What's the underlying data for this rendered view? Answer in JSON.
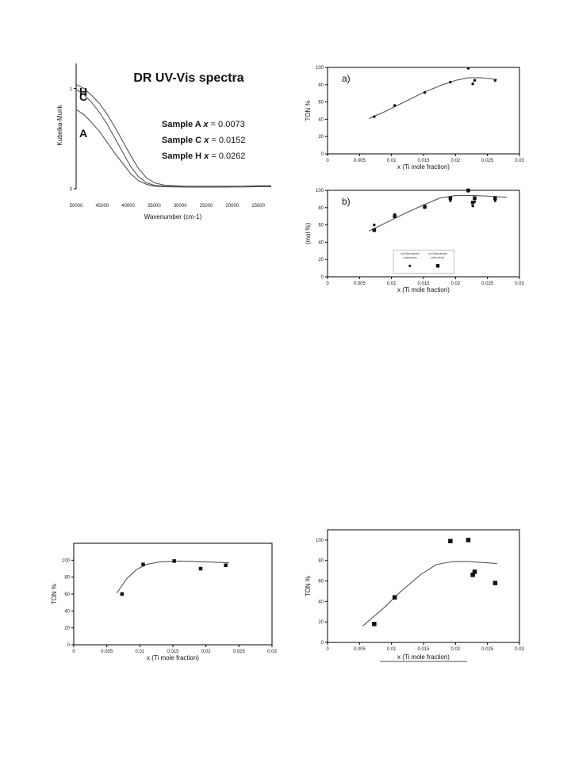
{
  "chart_data": [
    {
      "id": "uv",
      "type": "line",
      "title": "DR UV-Vis spectra",
      "xlabel": "Wavenumber (cm-1)",
      "ylabel": "Kubelka-Munk",
      "xlim": [
        50000,
        12500
      ],
      "ylim": [
        0,
        1.25
      ],
      "xticks": [
        50000,
        45000,
        40000,
        35000,
        30000,
        25000,
        20000,
        15000
      ],
      "yticks": [
        0,
        1
      ],
      "legend": [
        {
          "sample": "Sample A",
          "var": "x",
          "value": "= 0.0073"
        },
        {
          "sample": "Sample C",
          "var": "x",
          "value": "= 0.0152"
        },
        {
          "sample": "Sample H",
          "var": "x",
          "value": "= 0.0262"
        }
      ],
      "series": [
        {
          "name": "H",
          "x": [
            50000,
            48500,
            47000,
            45500,
            44000,
            42500,
            41000,
            39500,
            38000,
            36500,
            35000,
            33000,
            31000,
            29000,
            26000,
            22000,
            18000,
            15000,
            12500
          ],
          "y": [
            1.04,
            1.0,
            0.93,
            0.85,
            0.74,
            0.61,
            0.47,
            0.33,
            0.2,
            0.11,
            0.06,
            0.035,
            0.03,
            0.025,
            0.025,
            0.025,
            0.025,
            0.03,
            0.03
          ]
        },
        {
          "name": "C",
          "x": [
            50000,
            48500,
            47000,
            45500,
            44000,
            42500,
            41000,
            39500,
            38000,
            36500,
            35000,
            33000,
            31000,
            29000,
            26000,
            22000,
            18000,
            15000,
            12500
          ],
          "y": [
            0.99,
            0.94,
            0.86,
            0.76,
            0.64,
            0.5,
            0.36,
            0.22,
            0.12,
            0.06,
            0.035,
            0.025,
            0.022,
            0.02,
            0.02,
            0.02,
            0.02,
            0.025,
            0.025
          ]
        },
        {
          "name": "A",
          "x": [
            50000,
            48500,
            47000,
            45500,
            44000,
            42500,
            41000,
            39500,
            38000,
            36500,
            35000,
            33000,
            31000,
            29000,
            26000,
            22000,
            18000,
            15000,
            12500
          ],
          "y": [
            0.79,
            0.74,
            0.66,
            0.57,
            0.46,
            0.35,
            0.25,
            0.15,
            0.08,
            0.045,
            0.025,
            0.02,
            0.018,
            0.016,
            0.016,
            0.016,
            0.018,
            0.02,
            0.02
          ]
        }
      ]
    },
    {
      "id": "a",
      "type": "scatter",
      "panel_label": "a)",
      "xlabel": "x (Ti mole fraction)",
      "ylabel": "TON %",
      "xlim": [
        0,
        0.03
      ],
      "ylim": [
        0,
        100
      ],
      "xticks": [
        "0",
        "0.005",
        "0.01",
        "0.015",
        "0.02",
        "0.025",
        "0.03"
      ],
      "yticks": [
        "0",
        "20",
        "40",
        "60",
        "80",
        "100"
      ],
      "points": {
        "x": [
          0.0073,
          0.0105,
          0.0152,
          0.0192,
          0.022,
          0.0227,
          0.023,
          0.0262
        ],
        "y": [
          43,
          56,
          71,
          83,
          99,
          81,
          85,
          85
        ]
      },
      "fit": {
        "x": [
          0.0065,
          0.009,
          0.012,
          0.015,
          0.018,
          0.02,
          0.022,
          0.024,
          0.0265
        ],
        "y": [
          41,
          49,
          60,
          71,
          80,
          85,
          88,
          88,
          86
        ]
      }
    },
    {
      "id": "b",
      "type": "scatter",
      "panel_label": "b)",
      "xlabel": "x (Ti mole fraction)",
      "ylabel": "(mol %)",
      "xlim": [
        0,
        0.03
      ],
      "ylim": [
        0,
        100
      ],
      "xticks": [
        "0",
        "0.005",
        "0.01",
        "0.015",
        "0.02",
        "0.025",
        "0.03"
      ],
      "yticks": [
        "0",
        "20",
        "40",
        "60",
        "80",
        "100"
      ],
      "legend": [
        {
          "line1": "cyclohexanone",
          "line2": "conversion",
          "marker": "circle"
        },
        {
          "line1": "cyclohexanone",
          "line2": "selectivity",
          "marker": "square"
        }
      ],
      "series": [
        {
          "marker": "circle",
          "x": [
            0.0073,
            0.0105,
            0.0152,
            0.0192,
            0.022,
            0.0227,
            0.023,
            0.0262
          ],
          "y": [
            60,
            72,
            80,
            88,
            99,
            82,
            87,
            88
          ]
        },
        {
          "marker": "square",
          "x": [
            0.0073,
            0.0105,
            0.0152,
            0.0192,
            0.022,
            0.0227,
            0.023,
            0.0262
          ],
          "y": [
            54,
            70,
            81,
            91,
            100,
            86,
            91,
            91
          ]
        }
      ],
      "fit": {
        "x": [
          0.0065,
          0.009,
          0.012,
          0.015,
          0.0175,
          0.02,
          0.023,
          0.026,
          0.028
        ],
        "y": [
          53,
          62,
          73,
          83,
          91,
          94,
          94,
          93,
          92
        ]
      }
    },
    {
      "id": "c",
      "type": "scatter",
      "xlabel": "x (Ti mole fraction)",
      "ylabel": "TON %",
      "xlim": [
        0,
        0.03
      ],
      "ylim": [
        0,
        120
      ],
      "xticks": [
        "0",
        "0.005",
        "0.01",
        "0.015",
        "0.02",
        "0.025",
        "0.03"
      ],
      "yticks": [
        "0",
        "20",
        "40",
        "60",
        "80",
        "100"
      ],
      "points": {
        "x": [
          0.0073,
          0.0105,
          0.0152,
          0.0192,
          0.023
        ],
        "y": [
          60,
          95,
          99,
          90,
          94
        ]
      },
      "fit": {
        "x": [
          0.0065,
          0.008,
          0.0095,
          0.011,
          0.013,
          0.016,
          0.02,
          0.0235
        ],
        "y": [
          61,
          78,
          89,
          95,
          98,
          99,
          98,
          97
        ]
      }
    },
    {
      "id": "d",
      "type": "scatter",
      "xlabel": "x (Ti mole fraction)",
      "ylabel": "TON %",
      "xlim": [
        0,
        0.03
      ],
      "ylim": [
        0,
        110
      ],
      "xticks": [
        "0",
        "0.005",
        "0.01",
        "0.015",
        "0.02",
        "0.025",
        "0.03"
      ],
      "yticks": [
        "0",
        "20",
        "40",
        "60",
        "80",
        "100"
      ],
      "points": {
        "x": [
          0.0073,
          0.0105,
          0.0192,
          0.022,
          0.0227,
          0.023,
          0.0262
        ],
        "y": [
          18,
          44,
          99,
          100,
          66,
          69,
          58
        ]
      },
      "fit": {
        "x": [
          0.0055,
          0.0085,
          0.0115,
          0.0145,
          0.017,
          0.0195,
          0.022,
          0.0245,
          0.0265
        ],
        "y": [
          16,
          32,
          50,
          66,
          76,
          79,
          79,
          78,
          77
        ]
      }
    }
  ]
}
